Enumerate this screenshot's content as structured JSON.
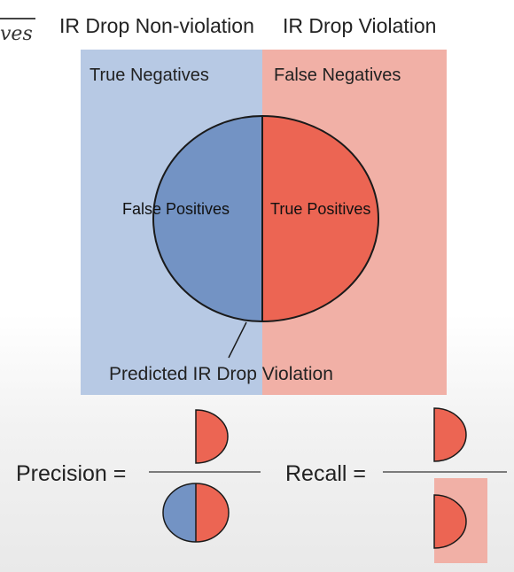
{
  "fragment": {
    "text": "ves"
  },
  "headers": {
    "non_violation": "IR Drop Non-violation",
    "violation": "IR Drop Violation"
  },
  "regions": {
    "true_negatives": "True Negatives",
    "false_negatives": "False Negatives",
    "false_positives": "False Positives",
    "true_positives": "True Positives"
  },
  "prediction_label": "Predicted IR Drop Violation",
  "formulas": {
    "precision_label": "Precision =",
    "recall_label": "Recall ="
  },
  "colors": {
    "blue_region": "#b7c9e4",
    "red_region": "#f1b0a6",
    "blue_half": "#7393c4",
    "red_half": "#ec6553",
    "outline": "#1a1a1a"
  }
}
